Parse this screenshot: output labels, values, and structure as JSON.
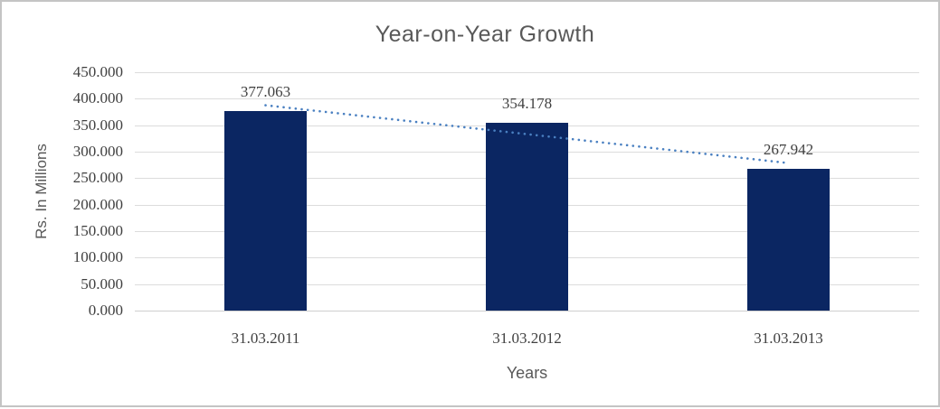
{
  "chart_data": {
    "type": "bar",
    "title": "Year-on-Year Growth",
    "xlabel": "Years",
    "ylabel": "Rs. In Millions",
    "categories": [
      "31.03.2011",
      "31.03.2012",
      "31.03.2013"
    ],
    "values": [
      377.063,
      354.178,
      267.942
    ],
    "value_labels": [
      "377.063",
      "354.178",
      "267.942"
    ],
    "y_ticks": [
      450,
      400,
      350,
      300,
      250,
      200,
      150,
      100,
      50,
      0
    ],
    "y_tick_labels": [
      "450.000",
      "400.000",
      "350.000",
      "300.000",
      "250.000",
      "200.000",
      "150.000",
      "100.000",
      "50.000",
      "0.000"
    ],
    "ylim": [
      0,
      450
    ],
    "grid": true,
    "legend": false,
    "trendline": {
      "type": "linear",
      "style": "dotted",
      "color": "#4a80c1"
    },
    "colors": {
      "bar": "#0b2662",
      "gridline": "#dcdcdc",
      "axis_line": "#cfcfcf",
      "number_text": "#404040",
      "label_text": "#595959",
      "frame_border": "#c4c4c4",
      "background": "#ffffff"
    }
  }
}
